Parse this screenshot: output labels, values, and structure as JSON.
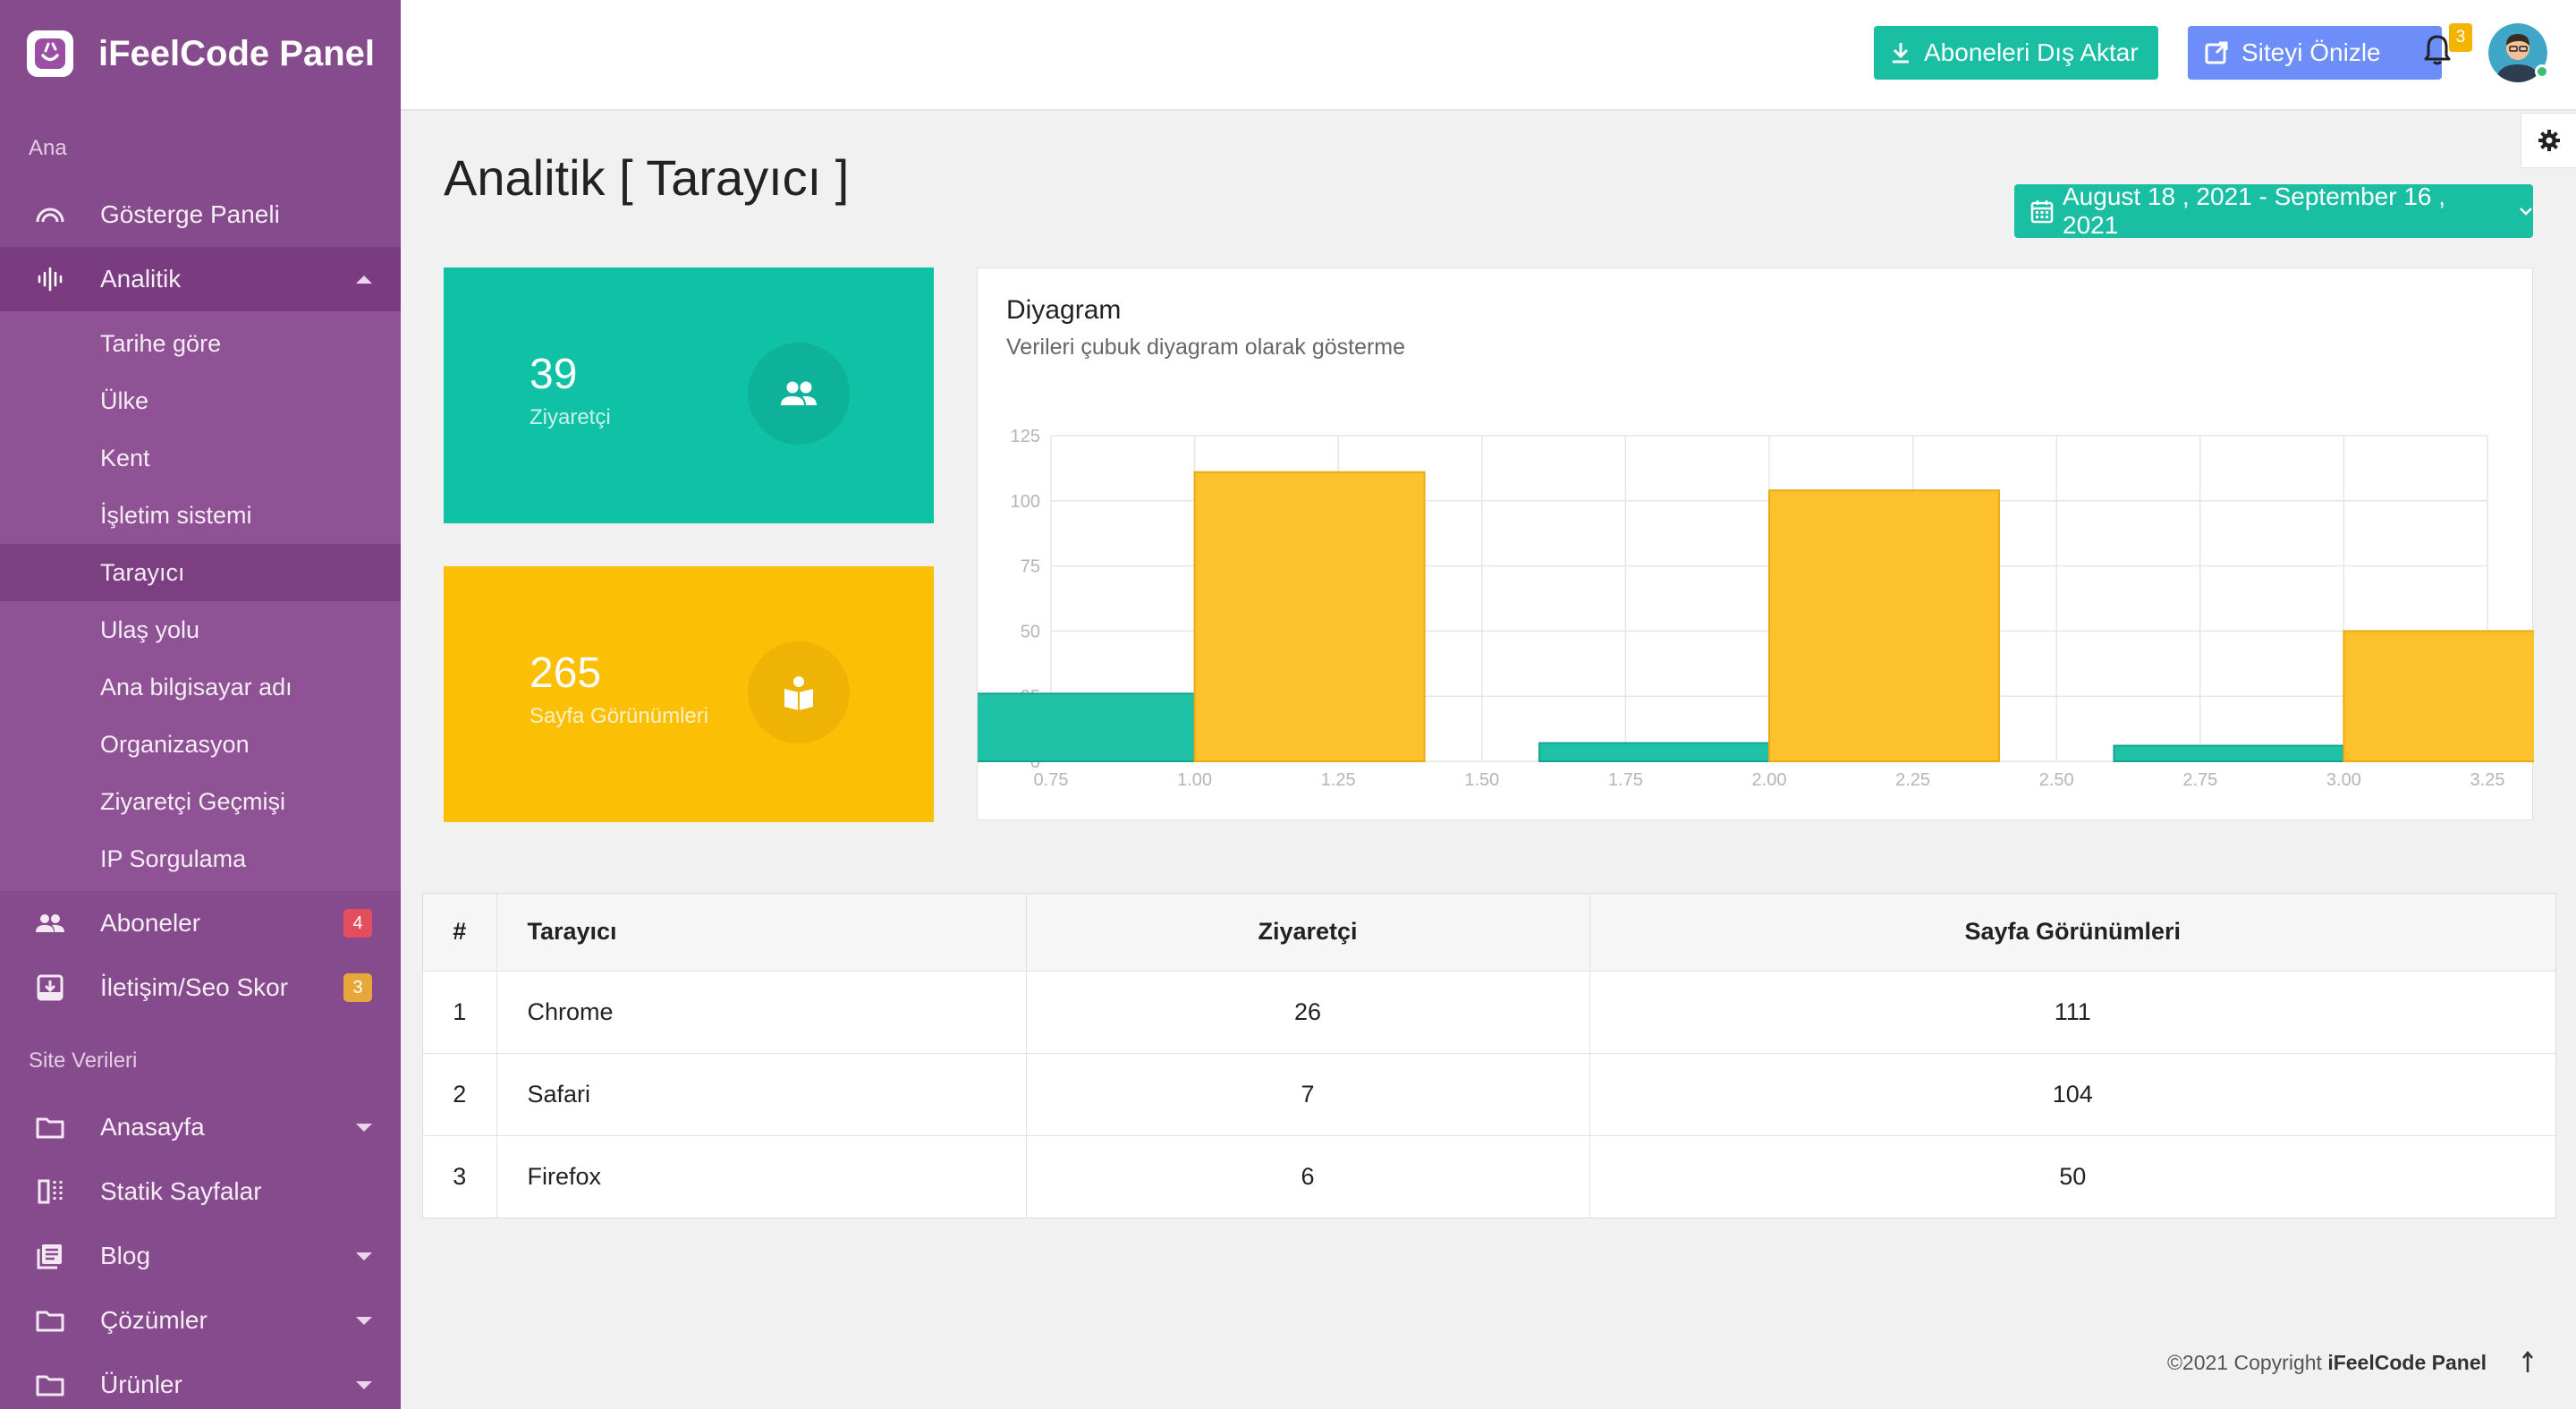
{
  "app": {
    "title": "iFeelCode Panel"
  },
  "sidebar": {
    "section_main": "Ana",
    "section_site": "Site Verileri",
    "dashboard": "Gösterge Paneli",
    "analytics": "Analitik",
    "analytics_sub": [
      "Tarihe göre",
      "Ülke",
      "Kent",
      "İşletim sistemi",
      "Tarayıcı",
      "Ulaş yolu",
      "Ana bilgisayar adı",
      "Organizasyon",
      "Ziyaretçi Geçmişi",
      "IP Sorgulama"
    ],
    "subscribers": "Aboneler",
    "subscribers_badge": "4",
    "contact": "İletişim/Seo Skor",
    "contact_badge": "3",
    "homepage": "Anasayfa",
    "static_pages": "Statik Sayfalar",
    "blog": "Blog",
    "solutions": "Çözümler",
    "products": "Ürünler"
  },
  "topbar": {
    "export_label": "Aboneleri Dış Aktar",
    "preview_label": "Siteyi Önizle",
    "notification_count": "3"
  },
  "page": {
    "title": "Analitik [ Tarayıcı ]",
    "date_range": "August 18 , 2021 - September 16 , 2021"
  },
  "stats": {
    "visitors_value": "39",
    "visitors_label": "Ziyaretçi",
    "pageviews_value": "265",
    "pageviews_label": "Sayfa Görünümleri"
  },
  "chart_data": {
    "type": "bar",
    "title": "Diyagram",
    "subtitle": "Verileri çubuk diyagram olarak gösterme",
    "x": [
      1,
      2,
      3
    ],
    "xlim": [
      0.75,
      3.25
    ],
    "xticks": [
      "0.75",
      "1.00",
      "1.25",
      "1.50",
      "1.75",
      "2.00",
      "2.25",
      "2.50",
      "2.75",
      "3.00",
      "3.25"
    ],
    "ylim": [
      0,
      125
    ],
    "yticks": [
      "0",
      "25",
      "50",
      "75",
      "100",
      "125"
    ],
    "grid": true,
    "series": [
      {
        "values": [
          26,
          7,
          6
        ],
        "color": "#1fc1a7"
      },
      {
        "values": [
          111,
          104,
          50
        ],
        "color": "#fcc12c"
      }
    ]
  },
  "table": {
    "headers": [
      "#",
      "Tarayıcı",
      "Ziyaretçi",
      "Sayfa Görünümleri"
    ],
    "rows": [
      [
        "1",
        "Chrome",
        "26",
        "111"
      ],
      [
        "2",
        "Safari",
        "7",
        "104"
      ],
      [
        "3",
        "Firefox",
        "6",
        "50"
      ]
    ]
  },
  "footer": {
    "copyright": "©2021 Copyright",
    "brand": "iFeelCode Panel"
  },
  "colors": {
    "sidebar": "#864b8c",
    "teal": "#0fc2a6",
    "yellow": "#fbbf05",
    "blue_button": "#6d8ef8",
    "badge_red": "#e34d5d",
    "badge_orange": "#e8a73a"
  }
}
